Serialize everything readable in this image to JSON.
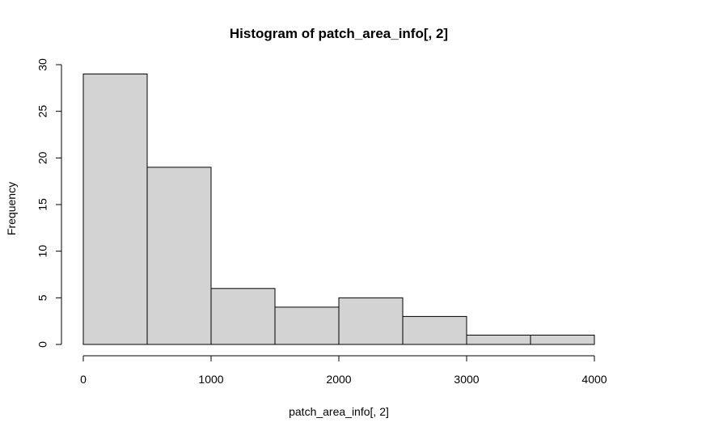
{
  "chart_data": {
    "type": "bar",
    "title": "Histogram of patch_area_info[, 2]",
    "xlabel": "patch_area_info[, 2]",
    "ylabel": "Frequency",
    "bins": [
      {
        "start": 0,
        "end": 500,
        "count": 29
      },
      {
        "start": 500,
        "end": 1000,
        "count": 19
      },
      {
        "start": 1000,
        "end": 1500,
        "count": 6
      },
      {
        "start": 1500,
        "end": 2000,
        "count": 4
      },
      {
        "start": 2000,
        "end": 2500,
        "count": 5
      },
      {
        "start": 2500,
        "end": 3000,
        "count": 3
      },
      {
        "start": 3000,
        "end": 3500,
        "count": 1
      },
      {
        "start": 3500,
        "end": 4000,
        "count": 1
      }
    ],
    "xlim": [
      0,
      4000
    ],
    "ylim": [
      0,
      30
    ],
    "xticks": [
      0,
      1000,
      2000,
      3000,
      4000
    ],
    "yticks": [
      0,
      5,
      10,
      15,
      20,
      25,
      30
    ],
    "grid": false,
    "bar_color": "#d3d3d3",
    "edge_color": "#000000"
  }
}
